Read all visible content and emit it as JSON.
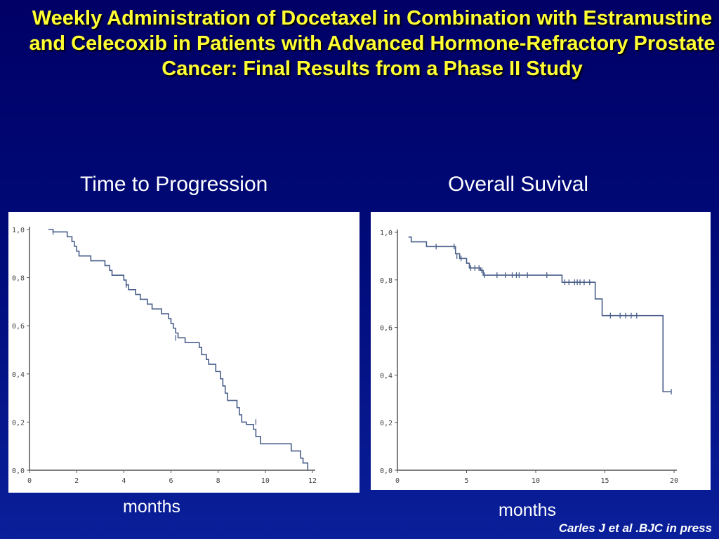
{
  "slide": {
    "title": "Weekly Administration of Docetaxel in Combination with Estramustine and Celecoxib in Patients with Advanced Hormone-Refractory Prostate Cancer: Final Results from a Phase II Study",
    "citation": "Carles J et al .BJC in press",
    "background_color": "#000a78",
    "title_color": "#ffff33"
  },
  "chart_data": [
    {
      "type": "line",
      "step": true,
      "title": "Time to Progression",
      "xlabel": "months",
      "ylabel": "",
      "xlim": [
        0,
        12
      ],
      "ylim": [
        0,
        1
      ],
      "x_ticks": [
        "0",
        "2",
        "4",
        "6",
        "8",
        "10",
        "12"
      ],
      "x_tick_values": [
        0,
        2,
        4,
        6,
        8,
        10,
        12
      ],
      "y_ticks": [
        "0,0",
        "0,2",
        "0,4",
        "0,6",
        "0,8",
        "1,0"
      ],
      "y_tick_values": [
        0,
        0.2,
        0.4,
        0.6,
        0.8,
        1.0
      ],
      "grid": false,
      "line_color": "#4a5f8a",
      "series": [
        {
          "points": [
            [
              0.8,
              1.0
            ],
            [
              1.0,
              0.99
            ],
            [
              1.6,
              0.97
            ],
            [
              1.8,
              0.95
            ],
            [
              1.9,
              0.93
            ],
            [
              2.0,
              0.91
            ],
            [
              2.1,
              0.89
            ],
            [
              2.6,
              0.87
            ],
            [
              3.2,
              0.85
            ],
            [
              3.4,
              0.83
            ],
            [
              3.5,
              0.81
            ],
            [
              4.0,
              0.79
            ],
            [
              4.1,
              0.77
            ],
            [
              4.2,
              0.75
            ],
            [
              4.5,
              0.73
            ],
            [
              4.7,
              0.71
            ],
            [
              5.0,
              0.69
            ],
            [
              5.2,
              0.67
            ],
            [
              5.6,
              0.65
            ],
            [
              5.9,
              0.63
            ],
            [
              6.0,
              0.61
            ],
            [
              6.1,
              0.59
            ],
            [
              6.2,
              0.57
            ],
            [
              6.3,
              0.55
            ],
            [
              6.6,
              0.53
            ],
            [
              7.2,
              0.51
            ],
            [
              7.3,
              0.48
            ],
            [
              7.5,
              0.46
            ],
            [
              7.6,
              0.44
            ],
            [
              7.9,
              0.41
            ],
            [
              8.1,
              0.38
            ],
            [
              8.2,
              0.35
            ],
            [
              8.3,
              0.32
            ],
            [
              8.4,
              0.29
            ],
            [
              8.8,
              0.26
            ],
            [
              8.9,
              0.23
            ],
            [
              9.0,
              0.2
            ],
            [
              9.2,
              0.19
            ],
            [
              9.5,
              0.17
            ],
            [
              9.6,
              0.14
            ],
            [
              9.8,
              0.11
            ],
            [
              11.1,
              0.08
            ],
            [
              11.5,
              0.05
            ],
            [
              11.6,
              0.03
            ],
            [
              11.8,
              0.0
            ]
          ],
          "censored": [
            [
              1.0,
              0.99
            ],
            [
              4.1,
              0.77
            ],
            [
              6.2,
              0.55
            ],
            [
              9.6,
              0.2
            ]
          ]
        }
      ]
    },
    {
      "type": "line",
      "step": true,
      "title": "Overall Suvival",
      "xlabel": "months",
      "ylabel": "",
      "xlim": [
        0,
        20
      ],
      "ylim": [
        0,
        1
      ],
      "x_ticks": [
        "0",
        "5",
        "10",
        "15",
        "20"
      ],
      "x_tick_values": [
        0,
        5,
        10,
        15,
        20
      ],
      "y_ticks": [
        "0,0",
        "0,2",
        "0,4",
        "0,6",
        "0,8",
        "1,0"
      ],
      "y_tick_values": [
        0,
        0.2,
        0.4,
        0.6,
        0.8,
        1.0
      ],
      "grid": false,
      "line_color": "#4a5f8a",
      "series": [
        {
          "points": [
            [
              0.8,
              0.98
            ],
            [
              1.0,
              0.96
            ],
            [
              2.0,
              0.96
            ],
            [
              2.1,
              0.94
            ],
            [
              4.0,
              0.94
            ],
            [
              4.2,
              0.91
            ],
            [
              4.5,
              0.89
            ],
            [
              5.0,
              0.87
            ],
            [
              5.2,
              0.85
            ],
            [
              6.0,
              0.84
            ],
            [
              6.2,
              0.82
            ],
            [
              11.8,
              0.82
            ],
            [
              11.9,
              0.79
            ],
            [
              14.0,
              0.79
            ],
            [
              14.3,
              0.72
            ],
            [
              14.8,
              0.65
            ],
            [
              19.1,
              0.65
            ],
            [
              19.2,
              0.33
            ],
            [
              19.8,
              0.33
            ]
          ],
          "censored": [
            [
              2.8,
              0.94
            ],
            [
              4.1,
              0.94
            ],
            [
              4.3,
              0.9
            ],
            [
              4.6,
              0.89
            ],
            [
              5.3,
              0.85
            ],
            [
              5.6,
              0.85
            ],
            [
              5.9,
              0.85
            ],
            [
              6.1,
              0.84
            ],
            [
              6.3,
              0.82
            ],
            [
              7.2,
              0.82
            ],
            [
              7.8,
              0.82
            ],
            [
              8.3,
              0.82
            ],
            [
              8.6,
              0.82
            ],
            [
              8.8,
              0.82
            ],
            [
              9.4,
              0.82
            ],
            [
              10.8,
              0.82
            ],
            [
              12.1,
              0.79
            ],
            [
              12.4,
              0.79
            ],
            [
              12.8,
              0.79
            ],
            [
              13.0,
              0.79
            ],
            [
              13.2,
              0.79
            ],
            [
              13.5,
              0.79
            ],
            [
              13.9,
              0.79
            ],
            [
              15.4,
              0.65
            ],
            [
              16.1,
              0.65
            ],
            [
              16.5,
              0.65
            ],
            [
              16.9,
              0.65
            ],
            [
              17.3,
              0.65
            ],
            [
              19.8,
              0.33
            ]
          ]
        }
      ]
    }
  ]
}
